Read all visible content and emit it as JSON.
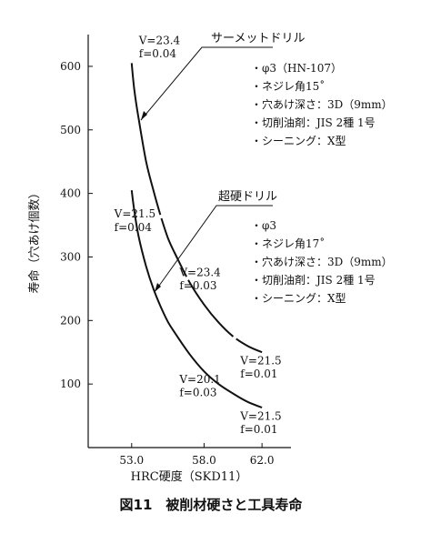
{
  "chart_data": {
    "type": "line",
    "xlabel": "HRC硬度（SKD11）",
    "ylabel": "寿命（穴あけ個数）",
    "xticks": [
      "53.0",
      "58.0",
      "62.0"
    ],
    "yticks": [
      "100",
      "200",
      "300",
      "400",
      "500",
      "600"
    ],
    "xlim": [
      50.0,
      64.0
    ],
    "ylim": [
      0,
      650
    ],
    "grid": false,
    "series": [
      {
        "name": "サーメットドリル",
        "color": "#111111",
        "dashes": true,
        "x": [
          53.0,
          53.2,
          53.5,
          54.0,
          54.5,
          55.0,
          55.5,
          56.0,
          57.0,
          58.0,
          59.0,
          60.0,
          61.0,
          62.0
        ],
        "y": [
          605,
          560,
          515,
          450,
          405,
          365,
          330,
          305,
          260,
          225,
          197,
          175,
          160,
          150
        ]
      },
      {
        "name": "超硬ドリル",
        "color": "#111111",
        "dashes": false,
        "x": [
          53.0,
          53.2,
          53.5,
          54.0,
          54.5,
          55.0,
          55.5,
          56.0,
          57.0,
          58.0,
          59.0,
          60.0,
          61.0,
          62.0
        ],
        "y": [
          405,
          370,
          330,
          285,
          250,
          222,
          198,
          180,
          147,
          120,
          100,
          85,
          72,
          63
        ]
      }
    ],
    "annotations": [
      {
        "text": "V=23.4",
        "x": 53.5,
        "y": 635
      },
      {
        "text": "f=0.04",
        "x": 53.5,
        "y": 614
      },
      {
        "text": "V=21.5",
        "x": 51.8,
        "y": 362
      },
      {
        "text": "f=0.04",
        "x": 51.8,
        "y": 341
      },
      {
        "text": "V=23.4",
        "x": 56.3,
        "y": 270
      },
      {
        "text": "f=0.03",
        "x": 56.3,
        "y": 249
      },
      {
        "text": "V=21.5",
        "x": 60.5,
        "y": 131
      },
      {
        "text": "f=0.01",
        "x": 60.5,
        "y": 110
      },
      {
        "text": "V=20.1",
        "x": 56.3,
        "y": 102
      },
      {
        "text": "f=0.03",
        "x": 56.3,
        "y": 81
      },
      {
        "text": "V=21.5",
        "x": 60.5,
        "y": 44
      },
      {
        "text": "f=0.01",
        "x": 60.5,
        "y": 23
      }
    ],
    "callouts": [
      {
        "title": "サーメットドリル",
        "items": [
          "・φ3（HN-107）",
          "・ネジレ角15˚",
          "・穴あけ深さ：3D（9mm）",
          "・切削油剤：JIS 2種 1号",
          "・シーニング：X型"
        ]
      },
      {
        "title": "超硬ドリル",
        "items": [
          "・φ3",
          "・ネジレ角17˚",
          "・穴あけ深さ：3D（9mm）",
          "・切削油剤：JIS 2種 1号",
          "・シーニング：X型"
        ]
      }
    ]
  },
  "caption": "図11　被削材硬さと工具寿命"
}
